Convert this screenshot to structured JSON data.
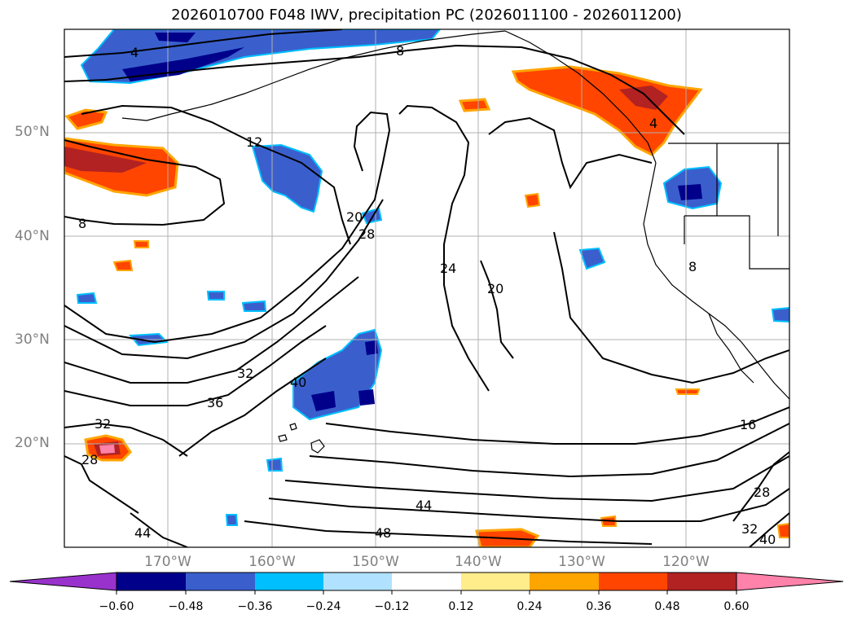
{
  "title": "2026010700 F048 IWV, precipitation PC (2026011100 - 2026011200)",
  "longitude_labels": [
    "170°W",
    "160°W",
    "150°W",
    "140°W",
    "130°W",
    "120°W"
  ],
  "latitude_labels": [
    "50°N",
    "40°N",
    "30°N",
    "20°N"
  ],
  "contour_labels": [
    "4",
    "8",
    "12",
    "8",
    "20",
    "28",
    "24",
    "20",
    "4",
    "8",
    "32",
    "36",
    "40",
    "32",
    "28",
    "16",
    "44",
    "48",
    "44",
    "28",
    "32",
    "40"
  ],
  "colorbar": {
    "ticks": [
      "−0.60",
      "−0.48",
      "−0.36",
      "−0.24",
      "−0.12",
      "0.12",
      "0.24",
      "0.36",
      "0.48",
      "0.60"
    ],
    "colors": [
      "#9932cc",
      "#00008b",
      "#3a5fcd",
      "#00bfff",
      "#b0e2ff",
      "#ffffff",
      "#ffec8b",
      "#ffa500",
      "#ff4500",
      "#b22222",
      "#ff82ab"
    ]
  }
}
